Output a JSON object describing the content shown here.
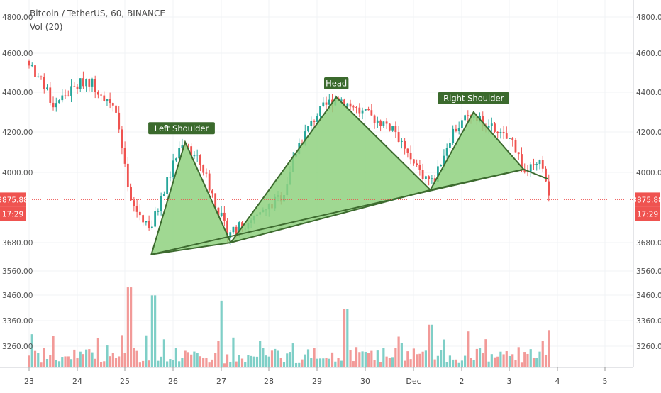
{
  "header": {
    "symbol_line": "Bitcoin / TetherUS, 60, BINANCE",
    "volume_line": "Vol (20)"
  },
  "price_marker": {
    "price": "3875.88",
    "countdown": "17:29"
  },
  "chart_data": {
    "type": "candlestick",
    "y_axis_ticks": [
      3260,
      3360,
      3460,
      3560,
      3680,
      4000,
      4200,
      4400,
      4600,
      4800
    ],
    "y_axis_labels": [
      "3260.00",
      "3360.00",
      "3460.00",
      "3560.00",
      "3680.00",
      "4000.00",
      "4200.00",
      "4400.00",
      "4600.00",
      "4800.00"
    ],
    "x_axis_labels": [
      "23",
      "24",
      "25",
      "26",
      "27",
      "28",
      "29",
      "30",
      "Dec",
      "2",
      "3",
      "4",
      "5"
    ],
    "current_price": 3875.88,
    "colors": {
      "up": "#26a69a",
      "down": "#ef5350",
      "up_volume": "#7fcfc7",
      "down_volume": "#f29a98",
      "pattern_fill": "#8fd17f",
      "pattern_line": "#3d6b2f",
      "label_bg": "#3b6a2d"
    },
    "pattern": {
      "name": "head-and-shoulders",
      "labels": [
        "Left Shoulder",
        "Head",
        "Right Shoulder"
      ],
      "points": [
        {
          "role": "start",
          "day": 25.55,
          "price": 3630
        },
        {
          "role": "left-shoulder",
          "day": 26.25,
          "price": 4150
        },
        {
          "role": "neckline-1",
          "day": 27.2,
          "price": 3680
        },
        {
          "role": "head",
          "day": 29.4,
          "price": 4375
        },
        {
          "role": "neckline-2",
          "day": 31.35,
          "price": 3920
        },
        {
          "role": "right-shoulder",
          "day": 32.25,
          "price": 4300
        },
        {
          "role": "neckline-3",
          "day": 33.3,
          "price": 4015
        },
        {
          "role": "end",
          "day": 33.8,
          "price": 3970
        }
      ]
    },
    "candles_summary": {
      "open_day": 23.0,
      "last_day": 33.82,
      "key_prices": [
        {
          "day": 23.0,
          "price": 4560
        },
        {
          "day": 23.5,
          "price": 4340
        },
        {
          "day": 24.2,
          "price": 4470
        },
        {
          "day": 24.8,
          "price": 4330
        },
        {
          "day": 25.1,
          "price": 3860
        },
        {
          "day": 25.55,
          "price": 3750
        },
        {
          "day": 26.2,
          "price": 4160
        },
        {
          "day": 26.6,
          "price": 4030
        },
        {
          "day": 27.1,
          "price": 3730
        },
        {
          "day": 27.6,
          "price": 3760
        },
        {
          "day": 28.3,
          "price": 3900
        },
        {
          "day": 28.6,
          "price": 4130
        },
        {
          "day": 29.0,
          "price": 4290
        },
        {
          "day": 29.4,
          "price": 4380
        },
        {
          "day": 29.9,
          "price": 4300
        },
        {
          "day": 30.6,
          "price": 4220
        },
        {
          "day": 31.0,
          "price": 4030
        },
        {
          "day": 31.4,
          "price": 3950
        },
        {
          "day": 31.8,
          "price": 4200
        },
        {
          "day": 32.25,
          "price": 4300
        },
        {
          "day": 32.8,
          "price": 4180
        },
        {
          "day": 33.1,
          "price": 4150
        },
        {
          "day": 33.3,
          "price": 4000
        },
        {
          "day": 33.7,
          "price": 4040
        },
        {
          "day": 33.82,
          "price": 3875.88
        }
      ]
    },
    "volume_summary": {
      "spikes": [
        {
          "day": 25.1,
          "volume": 3500
        },
        {
          "day": 25.6,
          "volume": 3470
        },
        {
          "day": 27.0,
          "volume": 3450
        },
        {
          "day": 29.6,
          "volume": 3420
        },
        {
          "day": 31.35,
          "volume": 3360
        },
        {
          "day": 33.7,
          "volume": 3300
        },
        {
          "day": 33.82,
          "volume": 3340
        }
      ]
    }
  }
}
